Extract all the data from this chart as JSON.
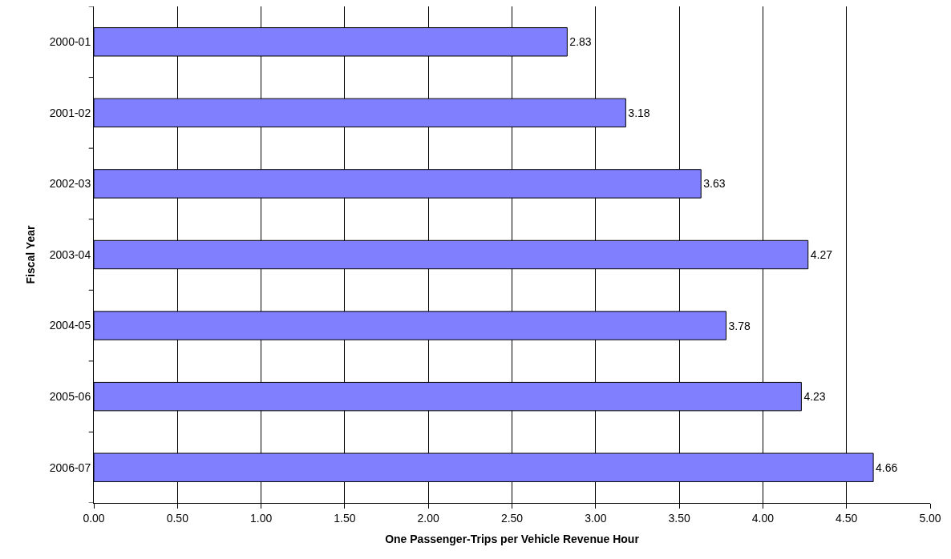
{
  "chart_data": {
    "type": "bar",
    "orientation": "horizontal",
    "xlabel": "One Passenger-Trips per Vehicle Revenue Hour",
    "ylabel": "Fiscal Year",
    "categories": [
      "2000-01",
      "2001-02",
      "2002-03",
      "2003-04",
      "2004-05",
      "2005-06",
      "2006-07"
    ],
    "values": [
      2.83,
      3.18,
      3.63,
      4.27,
      3.78,
      4.23,
      4.66
    ],
    "color": "#8080ff",
    "data_labels": true,
    "xlim": [
      0,
      5
    ],
    "xticks": [
      {
        "value": 0,
        "label": "0.00"
      },
      {
        "value": 0.5,
        "label": "0.50"
      },
      {
        "value": 1,
        "label": "1.00"
      },
      {
        "value": 1.5,
        "label": "1.50"
      },
      {
        "value": 2,
        "label": "2.00"
      },
      {
        "value": 2.5,
        "label": "2.50"
      },
      {
        "value": 3,
        "label": "3.00"
      },
      {
        "value": 3.5,
        "label": "3.50"
      },
      {
        "value": 4,
        "label": "4.00"
      },
      {
        "value": 4.5,
        "label": "4.50"
      },
      {
        "value": 5,
        "label": "5.00"
      }
    ],
    "grid": "x",
    "legend": false
  }
}
